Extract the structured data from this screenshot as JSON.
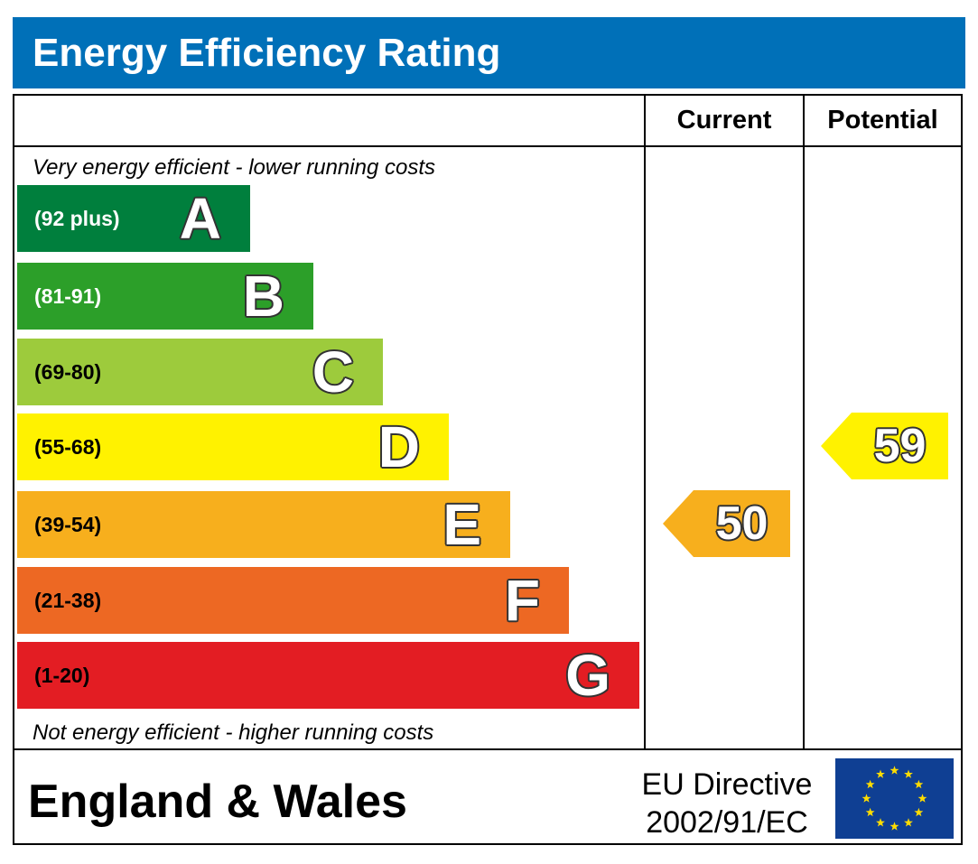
{
  "header": {
    "title": "Energy Efficiency Rating"
  },
  "columns": {
    "current": "Current",
    "potential": "Potential"
  },
  "notes": {
    "top": "Very energy efficient - lower running costs",
    "bottom": "Not energy efficient - higher running costs"
  },
  "footer": {
    "country": "England & Wales",
    "directive_line1": "EU Directive",
    "directive_line2": "2002/91/EC"
  },
  "chart_data": {
    "type": "bar",
    "title": "Energy Efficiency Rating",
    "categories": [
      "A",
      "B",
      "C",
      "D",
      "E",
      "F",
      "G"
    ],
    "ranges": [
      "(92 plus)",
      "(81-91)",
      "(69-80)",
      "(55-68)",
      "(39-54)",
      "(21-38)",
      "(1-20)"
    ],
    "colors": [
      "#007f3d",
      "#2c9f29",
      "#9dcb3c",
      "#fff200",
      "#f7af1d",
      "#ed6823",
      "#e31d23"
    ],
    "range_text_colors": [
      "#ffffff",
      "#ffffff",
      "#000000",
      "#000000",
      "#000000",
      "#000000",
      "#000000"
    ],
    "current": {
      "label": "Current",
      "value": 50,
      "band": "E",
      "color": "#f7af1d"
    },
    "potential": {
      "label": "Potential",
      "value": 59,
      "band": "D",
      "color": "#fff200"
    }
  }
}
